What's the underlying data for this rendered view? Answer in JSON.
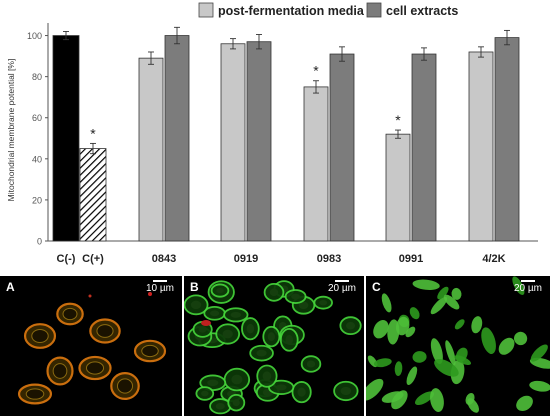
{
  "chart_data": {
    "type": "bar",
    "ylabel": "Mitochondrial  membrane potential [%]",
    "ylim": [
      0,
      110
    ],
    "yticks": [
      0,
      20,
      40,
      60,
      80,
      100
    ],
    "controls": [
      {
        "label": "C(-)",
        "value": 100,
        "error": 2,
        "significant": false,
        "style": "solid-black"
      },
      {
        "label": "C(+)",
        "value": 45,
        "error": 2.5,
        "significant": true,
        "style": "hatched"
      }
    ],
    "categories": [
      "0843",
      "0919",
      "0983",
      "0991",
      "4/2K"
    ],
    "series": [
      {
        "name": "post-fermentation media",
        "color": "#c8c8c8",
        "values": [
          89,
          96,
          75,
          52,
          92
        ],
        "errors": [
          3,
          2.5,
          3,
          2,
          2.5
        ],
        "significant": [
          false,
          false,
          true,
          true,
          false
        ]
      },
      {
        "name": "cell extracts",
        "color": "#7c7c7c",
        "values": [
          100,
          97,
          91,
          91,
          99
        ],
        "errors": [
          4,
          3.5,
          3.5,
          3,
          3.5
        ],
        "significant": [
          false,
          false,
          false,
          false,
          false
        ]
      }
    ],
    "significance_marker": "*",
    "legend_position": "top"
  },
  "micrographs": [
    {
      "letter": "A",
      "scale": "10 µm",
      "stain": "orange-red"
    },
    {
      "letter": "B",
      "scale": "20 µm",
      "stain": "green"
    },
    {
      "letter": "C",
      "scale": "20 µm",
      "stain": "green"
    }
  ]
}
